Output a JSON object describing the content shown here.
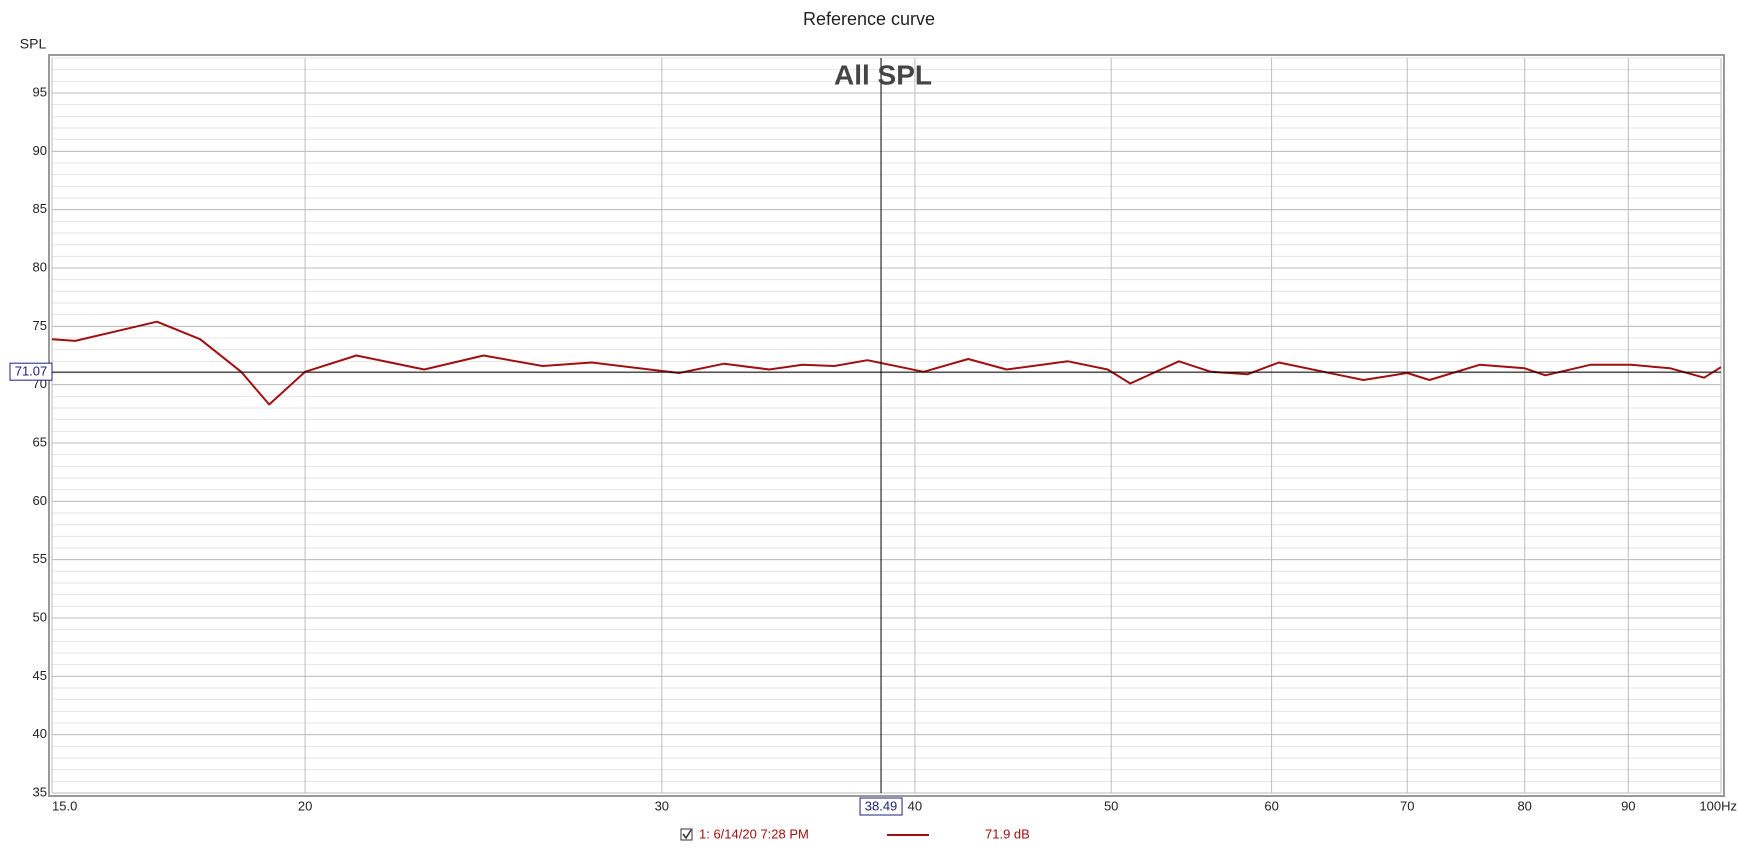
{
  "chart_data": {
    "type": "line",
    "title": "Reference curve",
    "ylabel": "SPL",
    "annotation": "All SPL",
    "x": [
      15.0,
      15.4,
      16.9,
      17.75,
      18.6,
      19.2,
      20.0,
      21.2,
      22.9,
      24.5,
      26.2,
      27.7,
      30.6,
      32.2,
      33.9,
      35.2,
      36.5,
      37.9,
      40.4,
      42.5,
      44.4,
      47.6,
      49.8,
      51.1,
      54.0,
      56.0,
      58.4,
      60.5,
      64.5,
      66.6,
      70.0,
      71.8,
      76.0,
      80.0,
      81.9,
      86.2,
      90.3,
      94.4,
      98.1,
      100.0
    ],
    "series": [
      {
        "name": "1: 6/14/20 7:28 PM",
        "color": "#a01010",
        "values": [
          73.9,
          73.75,
          75.4,
          73.9,
          71.1,
          68.3,
          71.1,
          72.5,
          71.3,
          72.5,
          71.6,
          71.9,
          71.0,
          71.8,
          71.3,
          71.7,
          71.6,
          72.1,
          71.1,
          72.2,
          71.3,
          72.0,
          71.3,
          70.1,
          72.0,
          71.1,
          70.9,
          71.9,
          70.9,
          70.4,
          71.0,
          70.4,
          71.7,
          71.4,
          70.8,
          71.7,
          71.7,
          71.4,
          70.6,
          71.5
        ]
      }
    ],
    "legend_readout": "71.9 dB",
    "xlog": true,
    "xlim": [
      15,
      100
    ],
    "xticks": [
      {
        "value": 15,
        "label": "15.0"
      },
      20,
      30,
      40,
      50,
      60,
      70,
      80,
      90,
      {
        "value": 100,
        "label": "100Hz"
      }
    ],
    "ylim": [
      35,
      98
    ],
    "yticks": [
      35,
      40,
      45,
      50,
      55,
      60,
      65,
      70,
      75,
      80,
      85,
      90,
      95
    ],
    "grid": true,
    "minor_grid": true,
    "cursor_x": 38.49,
    "cursor_y": 71.07
  }
}
